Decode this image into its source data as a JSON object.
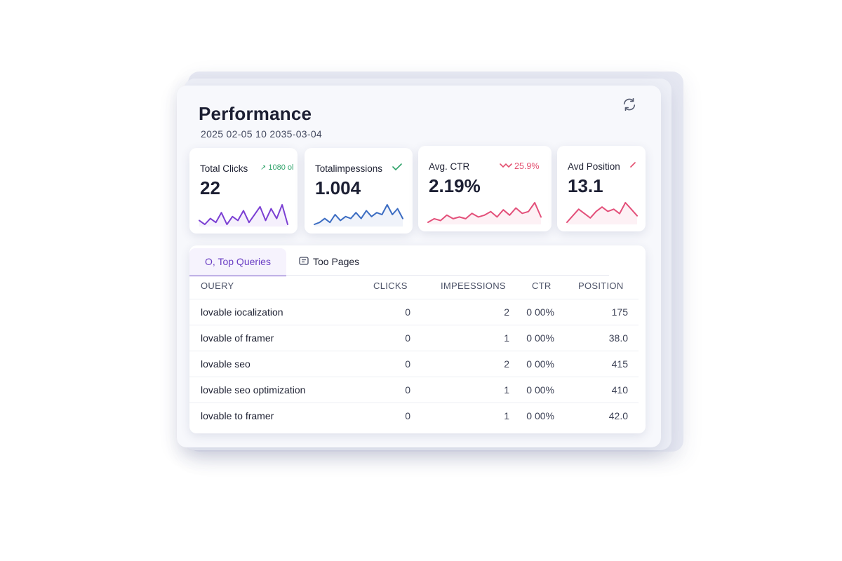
{
  "header": {
    "title": "Performance",
    "date_range": "2025  02-05 10 2035-03-04"
  },
  "metrics": [
    {
      "label": "Total Clicks",
      "value": "22",
      "change": "1080 ol",
      "change_color": "#2fa36a",
      "line_color": "#7b3fd3",
      "spark": [
        5,
        3,
        6,
        4,
        9,
        3,
        7,
        5,
        10,
        4,
        8,
        12,
        5,
        11,
        6,
        13,
        3
      ]
    },
    {
      "label": "Totalimpessions",
      "value": "1.004",
      "change": "",
      "change_color": "#2fa36a",
      "line_color": "#3b6cc2",
      "spark": [
        3,
        4,
        6,
        4,
        8,
        5,
        7,
        6,
        9,
        6,
        10,
        7,
        9,
        8,
        13,
        8,
        11,
        6
      ]
    },
    {
      "label": "Avg. CTR",
      "value": "2.19%",
      "change": "25.9%",
      "change_color": "#e34f6f",
      "line_color": "#e3507a",
      "spark": [
        3,
        5,
        4,
        7,
        5,
        6,
        5,
        8,
        6,
        7,
        9,
        6,
        10,
        7,
        11,
        8,
        9,
        14,
        6
      ]
    },
    {
      "label": "Avd Position",
      "value": "13.1",
      "change": "",
      "change_color": "#e34f6f",
      "line_color": "#e3507a",
      "spark": [
        3,
        6,
        9,
        7,
        5,
        8,
        10,
        8,
        9,
        7,
        12,
        9,
        6
      ]
    }
  ],
  "tabs": {
    "active": "O, Top Queries",
    "inactive": "Too Pages"
  },
  "table": {
    "headers": {
      "query": "OUERY",
      "clicks": "CLICKS",
      "impressions": "IMPEESSIONS",
      "ctr": "CTR",
      "position": "POSITION"
    },
    "rows": [
      {
        "query": "lovable iocalization",
        "clicks": "0",
        "impressions": "2",
        "ctr": "0 00%",
        "position": "175"
      },
      {
        "query": "lovable of framer",
        "clicks": "0",
        "impressions": "1",
        "ctr": "0 00%",
        "position": "38.0"
      },
      {
        "query": "lovable seo",
        "clicks": "0",
        "impressions": "2",
        "ctr": "0 00%",
        "position": "415"
      },
      {
        "query": "lovable seo optimization",
        "clicks": "0",
        "impressions": "1",
        "ctr": "0 00%",
        "position": "410"
      },
      {
        "query": "lovable to framer",
        "clicks": "0",
        "impressions": "1",
        "ctr": "0 00%",
        "position": "42.0"
      }
    ]
  }
}
